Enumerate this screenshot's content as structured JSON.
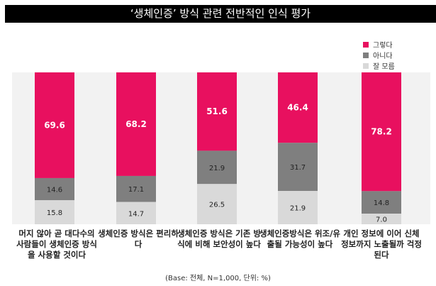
{
  "chart_data": {
    "type": "bar",
    "stacked": true,
    "title": "‘생체인증’ 방식 관련 전반적인 인식 평가",
    "categories": [
      "머지 않아 곧 대다수의 사람들이 생체인증 방식을 사용할 것이다",
      "생체인증 방식은 편리하다",
      "생체인증 방식은 기존 방식에 비해 보안성이 높다",
      "생체인증방식은 위조/유출될 가능성이 높다",
      "개인 정보에 이어 신체 정보까지 노출될까 걱정된다"
    ],
    "series": [
      {
        "name": "그렇다",
        "color": "#e8105f",
        "values": [
          69.6,
          68.2,
          51.6,
          46.4,
          78.2
        ]
      },
      {
        "name": "아니다",
        "color": "#7f7f7f",
        "values": [
          14.6,
          17.1,
          21.9,
          31.7,
          14.8
        ]
      },
      {
        "name": "잘 모름",
        "color": "#d9d9d9",
        "values": [
          15.8,
          14.7,
          26.5,
          21.9,
          7.0
        ]
      }
    ],
    "ylim": [
      0,
      100
    ],
    "legend_position": "top-right",
    "note": "(Base: 전체, N=1,000, 단위: %)"
  }
}
